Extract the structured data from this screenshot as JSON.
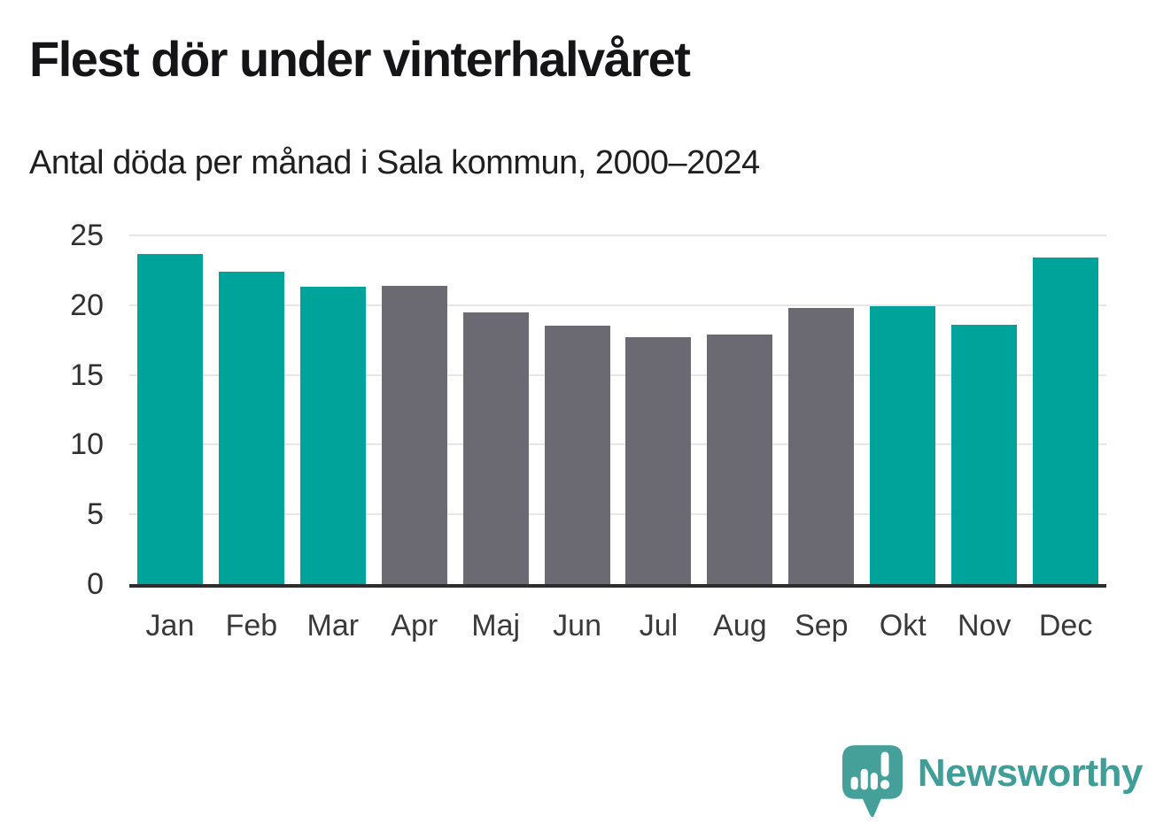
{
  "header": {
    "title": "Flest dör under vinterhalvåret",
    "subtitle": "Antal döda per månad i Sala kommun, 2000–2024"
  },
  "chart_data": {
    "type": "bar",
    "categories": [
      "Jan",
      "Feb",
      "Mar",
      "Apr",
      "Maj",
      "Jun",
      "Jul",
      "Aug",
      "Sep",
      "Okt",
      "Nov",
      "Dec"
    ],
    "values": [
      23.7,
      22.4,
      21.3,
      21.4,
      19.5,
      18.5,
      17.7,
      17.9,
      19.8,
      19.9,
      18.6,
      23.4
    ],
    "bar_colors": [
      "teal",
      "teal",
      "teal",
      "gray",
      "gray",
      "gray",
      "gray",
      "gray",
      "gray",
      "teal",
      "teal",
      "teal"
    ],
    "palette": {
      "teal": "#00a39a",
      "gray": "#6b6a72"
    },
    "title": "Flest dör under vinterhalvåret",
    "subtitle": "Antal döda per månad i Sala kommun, 2000–2024",
    "xlabel": "",
    "ylabel": "",
    "ylim": [
      0,
      25
    ],
    "yticks": [
      0,
      5,
      10,
      15,
      20,
      25
    ],
    "grid": true,
    "legend": "none",
    "axis_color": "#2d2d2d",
    "gridline_color": "#e7e7e7"
  },
  "branding": {
    "logo_text": "Newsworthy",
    "logo_color": "#45a09a",
    "logo_text_color": "#3f9e98",
    "logo_icon": "speech-bubble-bar-chart-exclamation-icon"
  }
}
